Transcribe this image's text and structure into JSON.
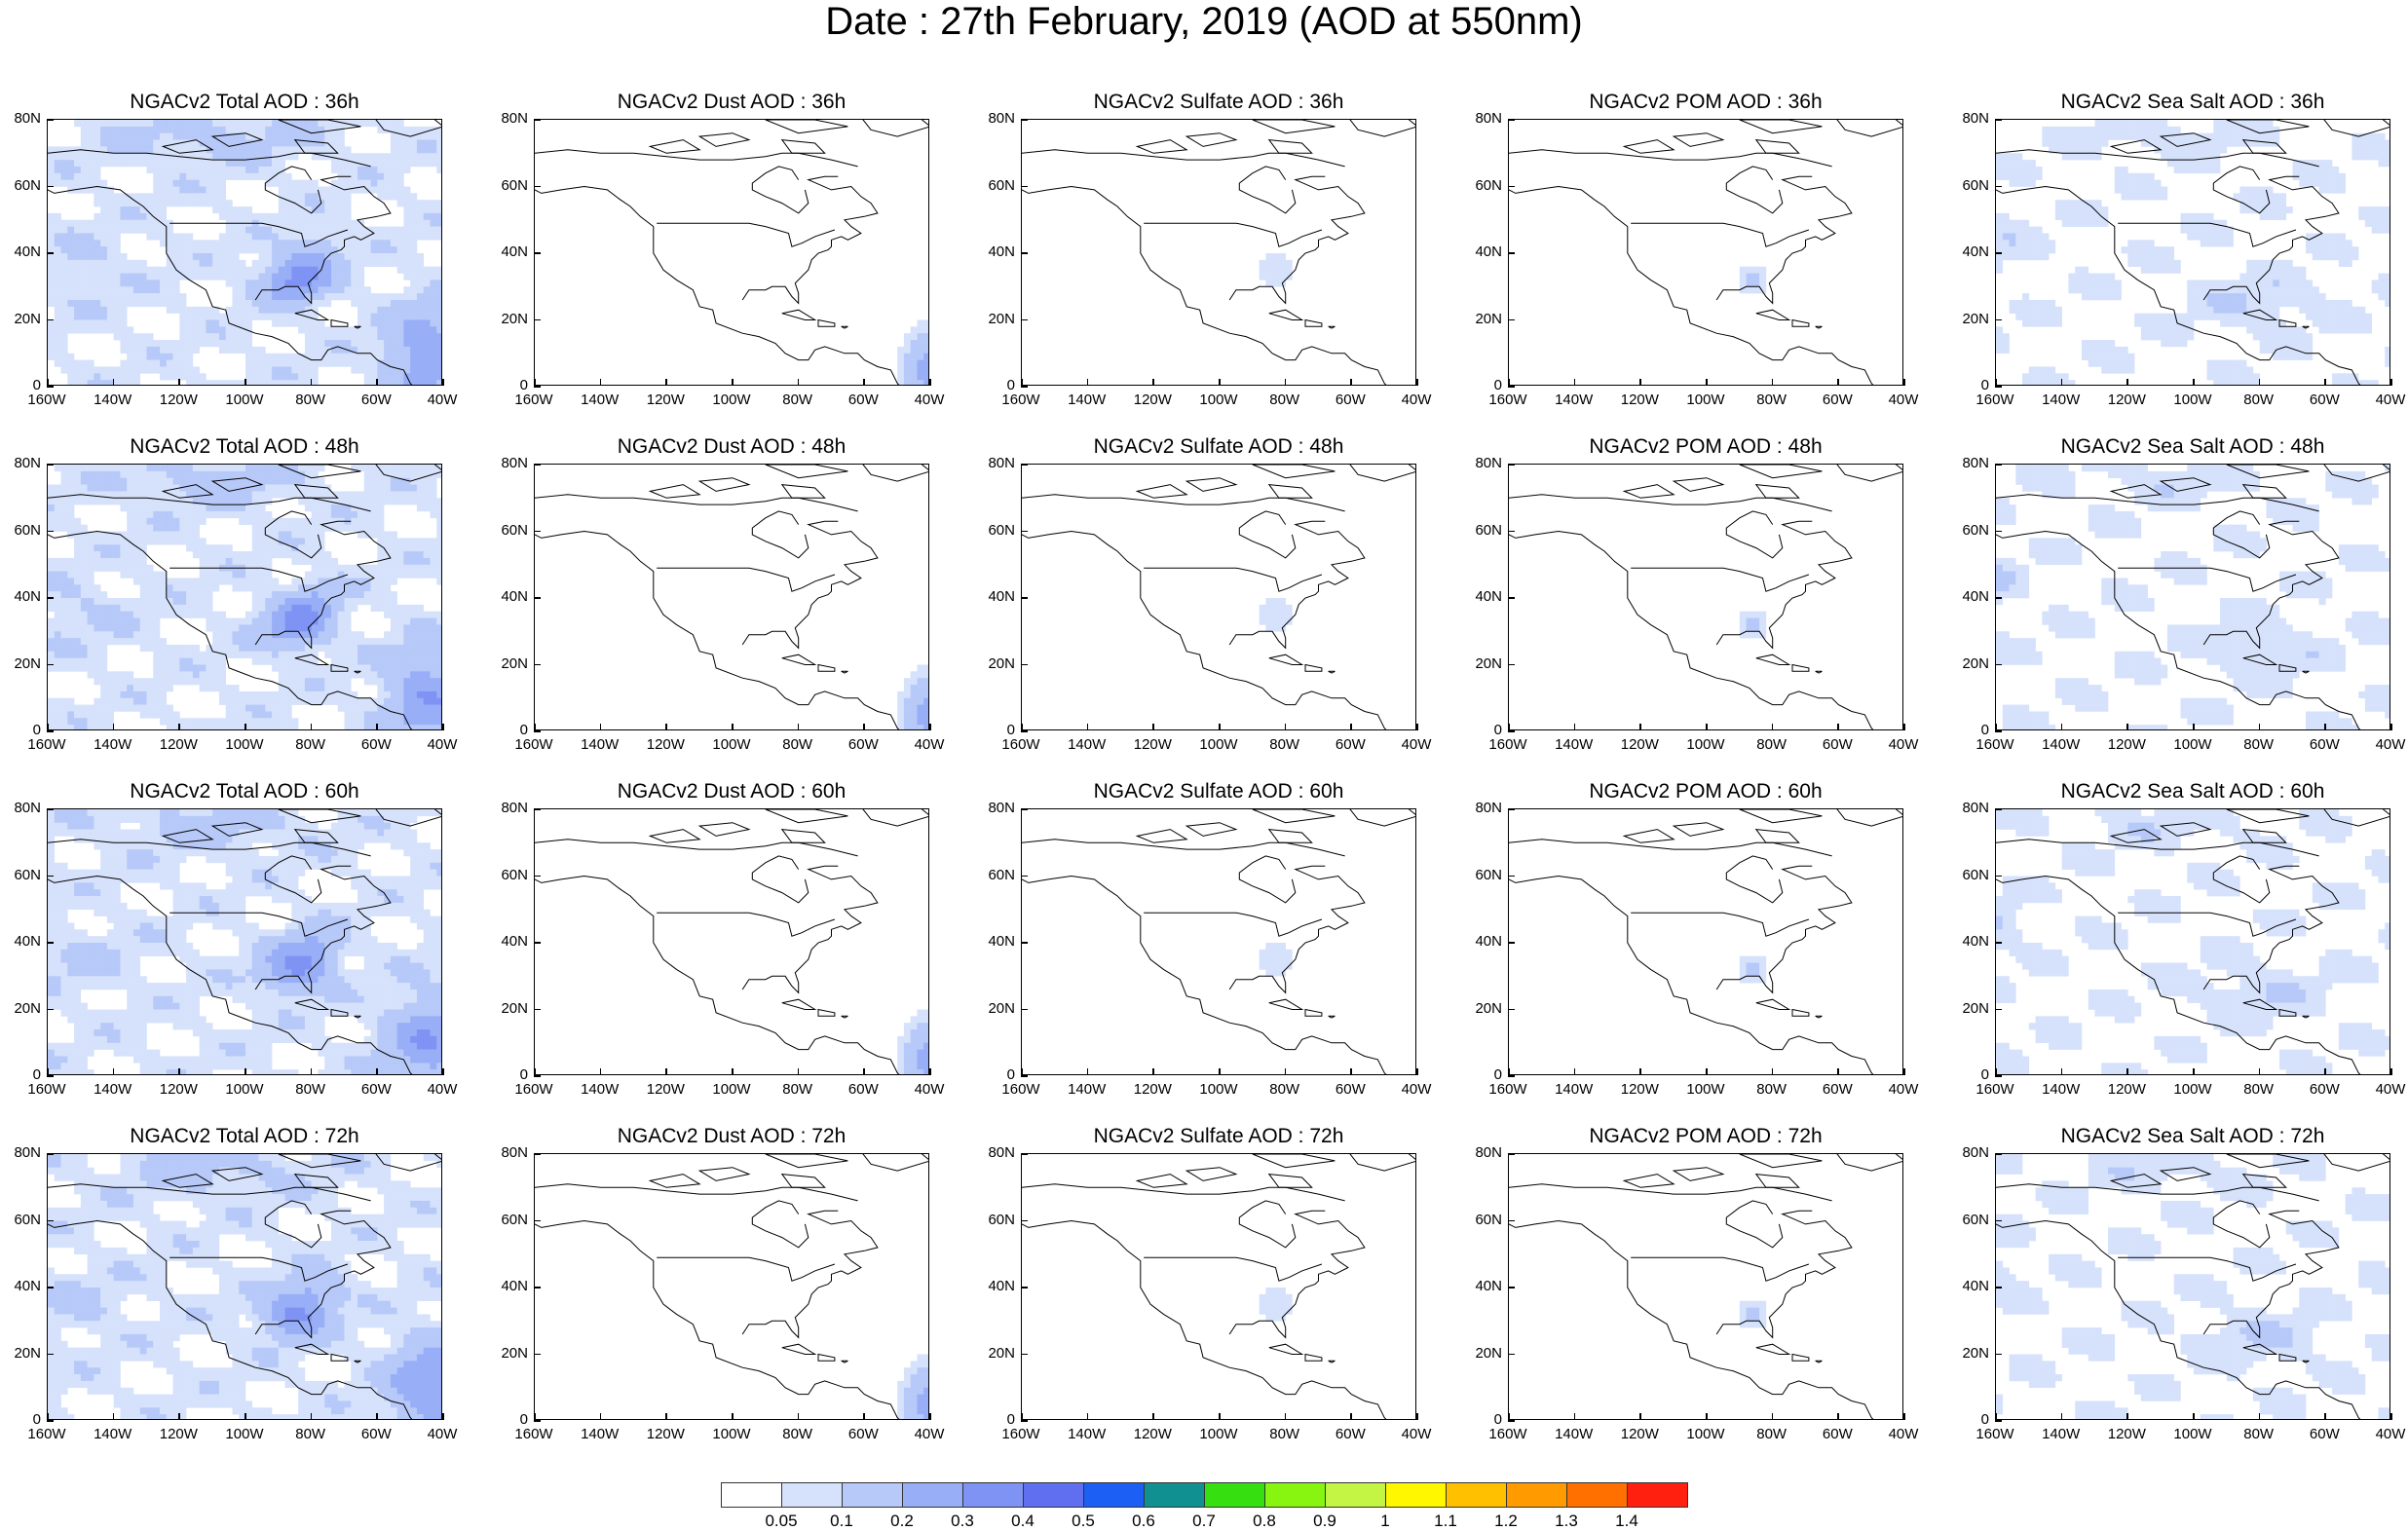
{
  "title": "Date : 27th February, 2019 (AOD at 550nm)",
  "panels": [
    [
      "NGACv2 Total AOD : 36h",
      "NGACv2 Dust AOD : 36h",
      "NGACv2 Sulfate AOD : 36h",
      "NGACv2 POM AOD : 36h",
      "NGACv2 Sea Salt AOD : 36h"
    ],
    [
      "NGACv2 Total AOD : 48h",
      "NGACv2 Dust AOD : 48h",
      "NGACv2 Sulfate AOD : 48h",
      "NGACv2 POM AOD : 48h",
      "NGACv2 Sea Salt AOD : 48h"
    ],
    [
      "NGACv2 Total AOD : 60h",
      "NGACv2 Dust AOD : 60h",
      "NGACv2 Sulfate AOD : 60h",
      "NGACv2 POM AOD : 60h",
      "NGACv2 Sea Salt AOD : 60h"
    ],
    [
      "NGACv2 Total AOD : 72h",
      "NGACv2 Dust AOD : 72h",
      "NGACv2 Sulfate AOD : 72h",
      "NGACv2 POM AOD : 72h",
      "NGACv2 Sea Salt  AOD : 72h"
    ]
  ],
  "lat_labels": [
    "80N",
    "60N",
    "40N",
    "20N",
    "0"
  ],
  "lon_labels": [
    "160W",
    "140W",
    "120W",
    "100W",
    "80W",
    "60W",
    "40W"
  ],
  "colorbar": {
    "labels": [
      "0.05",
      "0.1",
      "0.2",
      "0.3",
      "0.4",
      "0.5",
      "0.6",
      "0.7",
      "0.8",
      "0.9",
      "1",
      "1.1",
      "1.2",
      "1.3",
      "1.4"
    ],
    "colors": [
      "#ffffff",
      "#d6e2fb",
      "#b7c9f8",
      "#98aef6",
      "#7f93f4",
      "#5f6fef",
      "#1c5ff5",
      "#109090",
      "#36e010",
      "#88f510",
      "#c4f545",
      "#fff700",
      "#ffc000",
      "#ff9a00",
      "#ff7000",
      "#ff2010"
    ]
  }
}
